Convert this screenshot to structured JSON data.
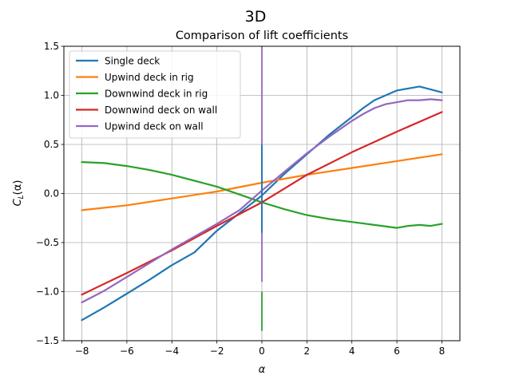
{
  "figure": {
    "suptitle": "3D"
  },
  "chart_data": {
    "type": "line",
    "title": "Comparison of lift coefficients",
    "xlabel": "α",
    "ylabel": "C_L(α)",
    "ylabel_main": "C",
    "ylabel_sub": "L",
    "ylabel_tail": "(α)",
    "xlim": [
      -8.8,
      8.8
    ],
    "ylim": [
      -1.5,
      1.5
    ],
    "xticks": [
      -8,
      -6,
      -4,
      -2,
      0,
      2,
      4,
      6,
      8
    ],
    "xtick_labels": [
      "−8",
      "−6",
      "−4",
      "−2",
      "0",
      "2",
      "4",
      "6",
      "8"
    ],
    "yticks": [
      -1.5,
      -1.0,
      -0.5,
      0.0,
      0.5,
      1.0,
      1.5
    ],
    "ytick_labels": [
      "−1.5",
      "−1.0",
      "−0.5",
      "0.0",
      "0.5",
      "1.0",
      "1.5"
    ],
    "grid": true,
    "legend_position": "top-left",
    "series": [
      {
        "name": "Single deck",
        "color": "#1f77b4",
        "x": [
          -8,
          -7,
          -6,
          -5,
          -4,
          -3,
          -2,
          -1,
          0,
          1,
          2,
          3,
          4,
          4.5,
          5,
          5.5,
          6,
          6.5,
          7,
          7.5,
          8
        ],
        "y": [
          -1.29,
          -1.16,
          -1.02,
          -0.88,
          -0.73,
          -0.6,
          -0.38,
          -0.2,
          -0.02,
          0.2,
          0.4,
          0.6,
          0.78,
          0.87,
          0.95,
          1.0,
          1.05,
          1.07,
          1.09,
          1.06,
          1.03
        ]
      },
      {
        "name": "Upwind deck in rig",
        "color": "#ff7f0e",
        "x": [
          -8,
          -6,
          -4,
          -2,
          0,
          2,
          4,
          6,
          8
        ],
        "y": [
          -0.17,
          -0.12,
          -0.05,
          0.02,
          0.11,
          0.19,
          0.26,
          0.33,
          0.4
        ]
      },
      {
        "name": "Downwind deck in rig",
        "color": "#2ca02c",
        "x": [
          -8,
          -7,
          -6,
          -5,
          -4,
          -3,
          -2,
          -1,
          0,
          1,
          2,
          3,
          4,
          5,
          6,
          6.5,
          7,
          7.5,
          8
        ],
        "y": [
          0.32,
          0.31,
          0.28,
          0.24,
          0.19,
          0.13,
          0.07,
          -0.01,
          -0.09,
          -0.16,
          -0.22,
          -0.26,
          -0.29,
          -0.32,
          -0.35,
          -0.33,
          -0.32,
          -0.33,
          -0.31
        ]
      },
      {
        "name": "Downwind deck on wall",
        "color": "#d62728",
        "x": [
          -8,
          -6,
          -4,
          -2,
          0,
          2,
          4,
          6,
          8
        ],
        "y": [
          -1.03,
          -0.81,
          -0.58,
          -0.33,
          -0.09,
          0.19,
          0.42,
          0.63,
          0.83
        ]
      },
      {
        "name": "Upwind deck on wall",
        "color": "#9467bd",
        "x": [
          -8,
          -7,
          -6,
          -5,
          -4,
          -3,
          -2,
          -1,
          0,
          1,
          2,
          3,
          4,
          4.5,
          5,
          5.5,
          6,
          6.5,
          7,
          7.5,
          8
        ],
        "y": [
          -1.11,
          -0.99,
          -0.85,
          -0.71,
          -0.57,
          -0.44,
          -0.31,
          -0.17,
          0.03,
          0.22,
          0.41,
          0.58,
          0.74,
          0.81,
          0.87,
          0.91,
          0.93,
          0.95,
          0.95,
          0.96,
          0.95
        ]
      }
    ],
    "annotations": [
      {
        "series": "Upwind deck on wall",
        "x": 0,
        "y_from": -0.9,
        "y_to": 1.5
      },
      {
        "series": "Downwind deck in rig",
        "x": 0,
        "y_from": -1.4,
        "y_to": -1.0
      },
      {
        "series": "Single deck",
        "x": 0,
        "y_from": -0.4,
        "y_to": 0.5
      }
    ]
  }
}
